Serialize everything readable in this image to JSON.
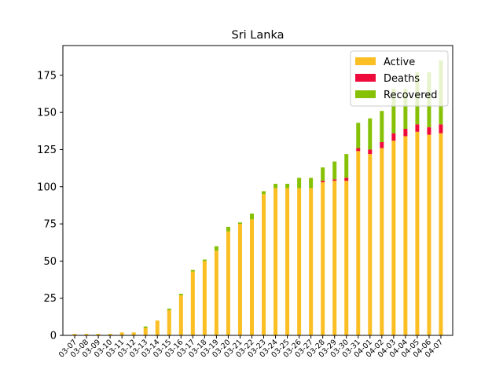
{
  "chart_data": {
    "type": "bar",
    "stacked": true,
    "title": "Sri Lanka",
    "xlabel": "",
    "ylabel": "",
    "ylim": [
      0,
      195
    ],
    "y_ticks": [
      0,
      25,
      50,
      75,
      100,
      125,
      150,
      175
    ],
    "grid": false,
    "legend_position": "top-right",
    "categories": [
      "03-07",
      "03-08",
      "03-09",
      "03-10",
      "03-11",
      "03-12",
      "03-13",
      "03-14",
      "03-15",
      "03-16",
      "03-17",
      "03-18",
      "03-19",
      "03-20",
      "03-21",
      "03-22",
      "03-23",
      "03-24",
      "03-25",
      "03-26",
      "03-27",
      "03-28",
      "03-29",
      "03-30",
      "03-31",
      "04-01",
      "04-02",
      "04-03",
      "04-04",
      "04-05",
      "04-06",
      "04-07"
    ],
    "series": [
      {
        "name": "Active",
        "color": "#fbbf24",
        "values": [
          1,
          1,
          1,
          1,
          2,
          2,
          5,
          10,
          17,
          27,
          43,
          50,
          57,
          70,
          75,
          78,
          95,
          99,
          99,
          99,
          99,
          103,
          104,
          104,
          124,
          122,
          126,
          131,
          134,
          137,
          135,
          136
        ]
      },
      {
        "name": "Deaths",
        "color": "#ef0a3c",
        "values": [
          0,
          0,
          0,
          0,
          0,
          0,
          0,
          0,
          0,
          0,
          0,
          0,
          0,
          0,
          0,
          0,
          0,
          0,
          0,
          0,
          0,
          1,
          1,
          2,
          2,
          3,
          4,
          5,
          5,
          5,
          5,
          6
        ]
      },
      {
        "name": "Recovered",
        "color": "#86c106",
        "values": [
          0,
          0,
          0,
          0,
          0,
          0,
          1,
          0,
          1,
          1,
          1,
          1,
          3,
          3,
          1,
          4,
          2,
          3,
          3,
          7,
          7,
          9,
          12,
          16,
          17,
          21,
          21,
          30,
          27,
          35,
          37,
          43
        ]
      }
    ]
  }
}
